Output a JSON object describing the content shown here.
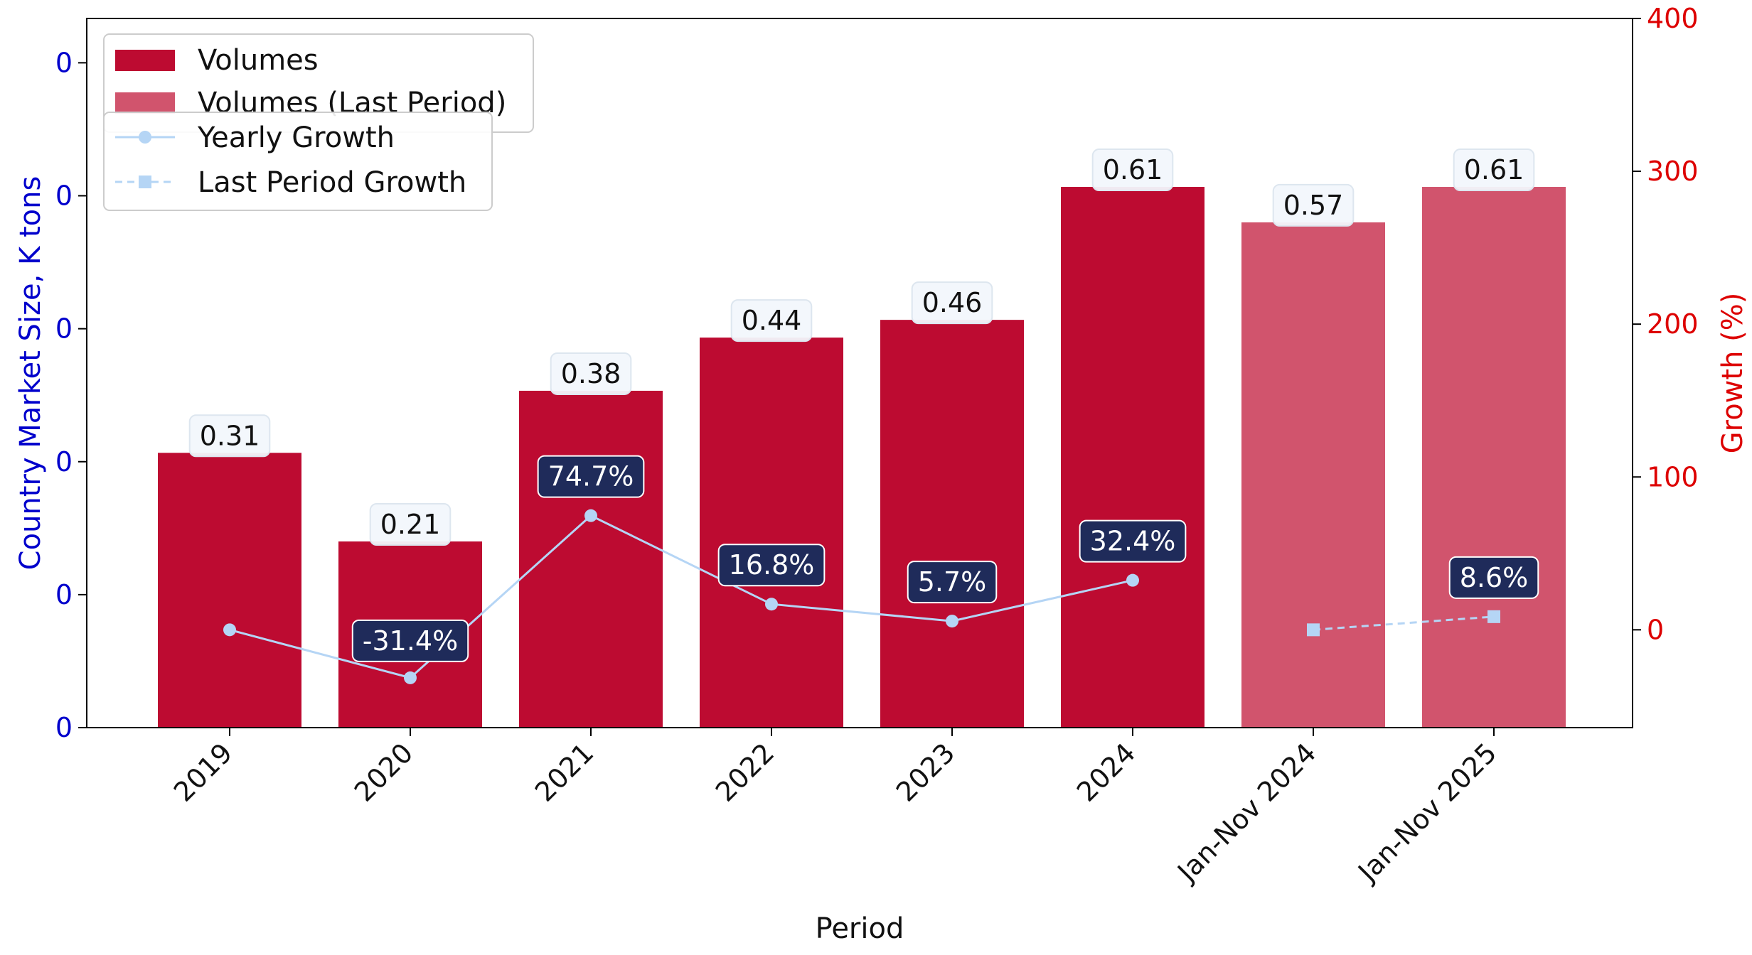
{
  "colors": {
    "volumes": "#bd0b31",
    "volumes_last_period": "#d1546d",
    "growth_line": "#b5d5f5",
    "left_axis": "#0000cc",
    "right_axis": "#dd0000",
    "growth_label_bg": "#1f2b5a",
    "volume_label_bg": "#f2f7fc"
  },
  "chart_data": {
    "type": "bar",
    "xlabel": "Period",
    "ylabel_left": "Country Market Size, K tons",
    "ylabel_right": "Growth (%)",
    "categories": [
      "2019",
      "2020",
      "2021",
      "2022",
      "2023",
      "2024",
      "Jan-Nov 2024",
      "Jan-Nov 2025"
    ],
    "left_ylim": [
      0,
      0.8
    ],
    "left_ticks": [
      0,
      0.15,
      0.3,
      0.45,
      0.6,
      0.75
    ],
    "left_tick_labels": [
      "0",
      "0",
      "0",
      "0",
      "0",
      "0"
    ],
    "right_ylim": [
      -64,
      400
    ],
    "right_ticks": [
      0,
      100,
      200,
      300,
      400
    ],
    "right_tick_labels": [
      "0",
      "100",
      "200",
      "300",
      "400"
    ],
    "series": [
      {
        "name": "Volumes",
        "kind": "bar",
        "values": [
          0.31,
          0.21,
          0.38,
          0.44,
          0.46,
          0.61,
          null,
          null
        ],
        "labels": [
          "0.31",
          "0.21",
          "0.38",
          "0.44",
          "0.46",
          "0.61",
          "",
          ""
        ]
      },
      {
        "name": "Volumes (Last Period)",
        "kind": "bar",
        "values": [
          null,
          null,
          null,
          null,
          null,
          null,
          0.57,
          0.61
        ],
        "labels": [
          "",
          "",
          "",
          "",
          "",
          "",
          "0.57",
          "0.61"
        ]
      },
      {
        "name": "Yearly Growth",
        "kind": "line",
        "values": [
          0,
          -31.4,
          74.7,
          16.8,
          5.7,
          32.4,
          null,
          null
        ],
        "labels": [
          "",
          "-31.4%",
          "74.7%",
          "16.8%",
          "5.7%",
          "32.4%",
          "",
          ""
        ]
      },
      {
        "name": "Last Period Growth",
        "kind": "line",
        "values": [
          null,
          null,
          null,
          null,
          null,
          null,
          0,
          8.6
        ],
        "labels": [
          "",
          "",
          "",
          "",
          "",
          "",
          "",
          "8.6%"
        ]
      }
    ],
    "grid": false,
    "legend_position": "top-left"
  }
}
